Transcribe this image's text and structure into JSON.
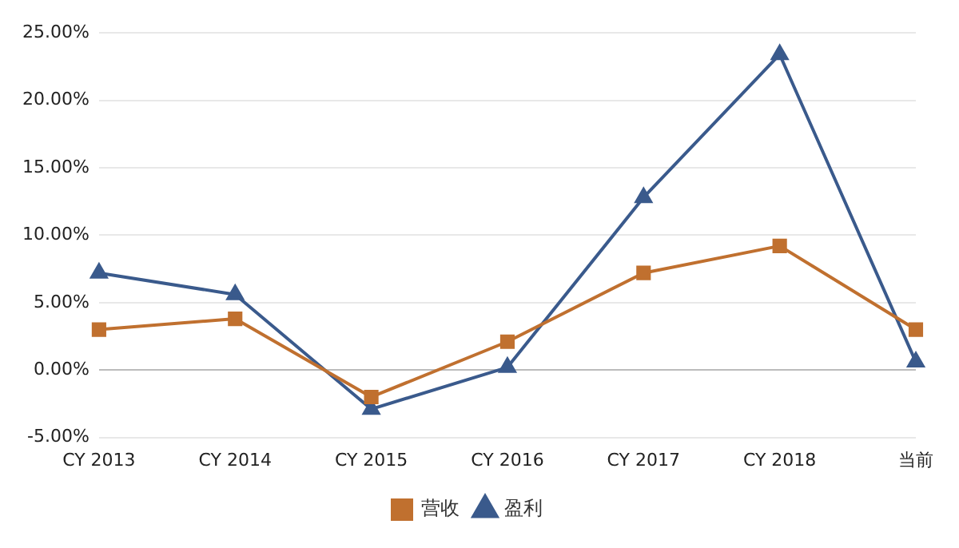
{
  "chart_data": {
    "type": "line",
    "categories": [
      "CY 2013",
      "CY 2014",
      "CY 2015",
      "CY 2016",
      "CY 2017",
      "CY 2018",
      "当前"
    ],
    "series": [
      {
        "name": "营收",
        "color": "#c0702f",
        "marker": "square",
        "values": [
          3.0,
          3.8,
          -2.0,
          2.1,
          7.2,
          9.2,
          3.0
        ]
      },
      {
        "name": "盈利",
        "color": "#3a5a8c",
        "marker": "triangle",
        "values": [
          7.2,
          5.6,
          -2.9,
          0.2,
          12.8,
          23.4,
          0.6
        ]
      }
    ],
    "ylim": [
      -5,
      25
    ],
    "yticks": [
      {
        "value": -5,
        "label": "-5.00%"
      },
      {
        "value": 0,
        "label": "0.00%"
      },
      {
        "value": 5,
        "label": "5.00%"
      },
      {
        "value": 10,
        "label": "10.00%"
      },
      {
        "value": 15,
        "label": "15.00%"
      },
      {
        "value": 20,
        "label": "20.00%"
      },
      {
        "value": 25,
        "label": "25.00%"
      }
    ],
    "grid": "y",
    "legend": "bottom",
    "line_style": "solid"
  }
}
